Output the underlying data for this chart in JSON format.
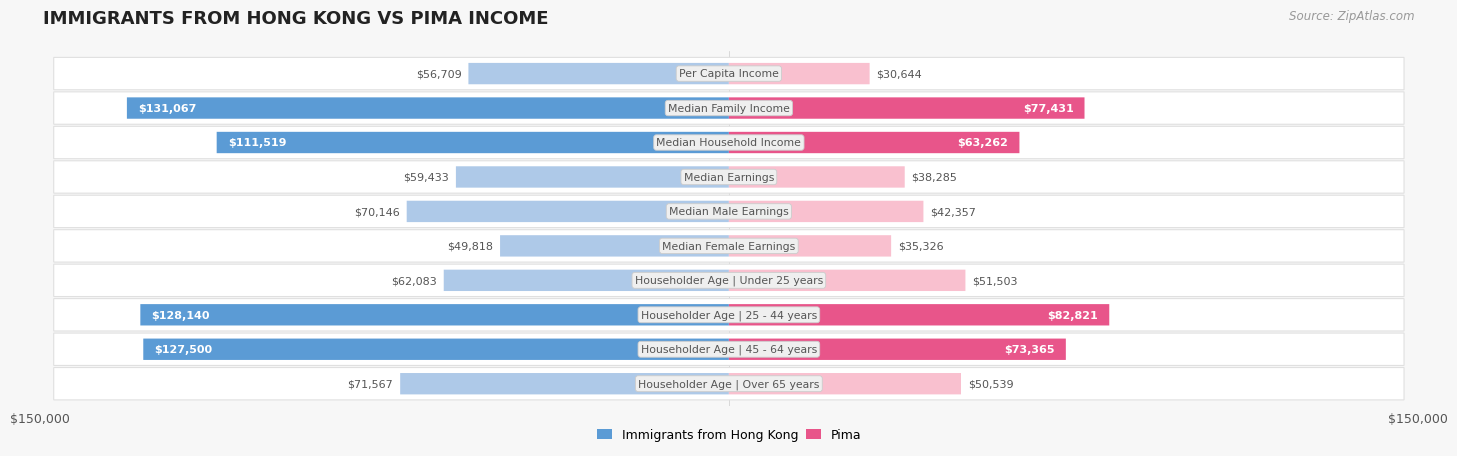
{
  "title": "IMMIGRANTS FROM HONG KONG VS PIMA INCOME",
  "source": "Source: ZipAtlas.com",
  "categories": [
    "Per Capita Income",
    "Median Family Income",
    "Median Household Income",
    "Median Earnings",
    "Median Male Earnings",
    "Median Female Earnings",
    "Householder Age | Under 25 years",
    "Householder Age | 25 - 44 years",
    "Householder Age | 45 - 64 years",
    "Householder Age | Over 65 years"
  ],
  "hk_values": [
    56709,
    131067,
    111519,
    59433,
    70146,
    49818,
    62083,
    128140,
    127500,
    71567
  ],
  "pima_values": [
    30644,
    77431,
    63262,
    38285,
    42357,
    35326,
    51503,
    82821,
    73365,
    50539
  ],
  "hk_color_light": "#aec9e8",
  "hk_color_dark": "#5b9bd5",
  "pima_color_light": "#f9c0cf",
  "pima_color_dark": "#e8558a",
  "hk_threshold": 90000,
  "pima_threshold": 60000,
  "axis_max": 150000,
  "bg_color": "#f7f7f7",
  "row_bg": "#ffffff",
  "row_border": "#e0e0e0",
  "center_label_bg": "#e8e8e8",
  "center_label_fg": "#555555",
  "xlabel_left": "$150,000",
  "xlabel_right": "$150,000",
  "legend_hk": "Immigrants from Hong Kong",
  "legend_pima": "Pima",
  "value_color_outside": "#555555",
  "value_color_inside": "#ffffff"
}
